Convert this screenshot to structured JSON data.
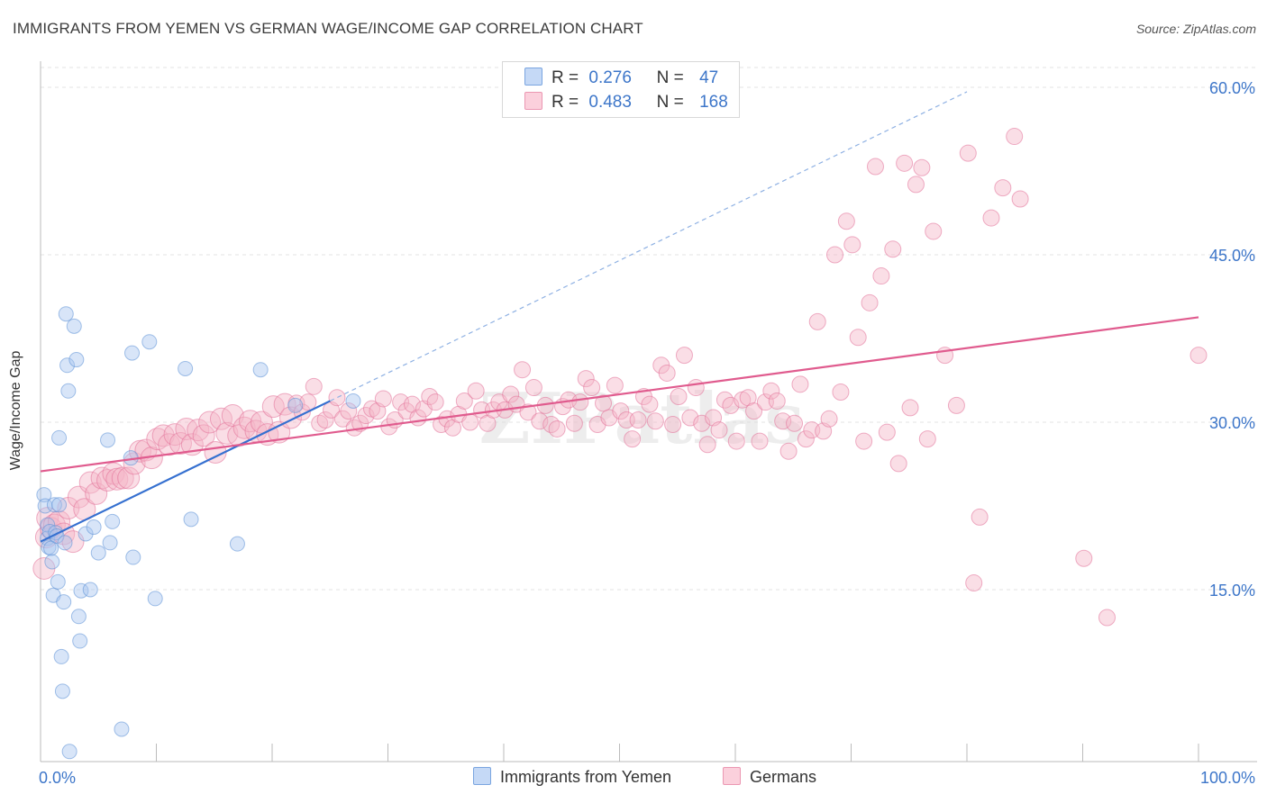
{
  "title": "IMMIGRANTS FROM YEMEN VS GERMAN WAGE/INCOME GAP CORRELATION CHART",
  "source": "Source: ZipAtlas.com",
  "watermark": "ZIPatlas",
  "legend_stats": [
    {
      "r_label": "R =",
      "r_value": "0.276",
      "n_label": "N =",
      "n_value": "47",
      "color": "#a9c6f0"
    },
    {
      "r_label": "R =",
      "r_value": "0.483",
      "n_label": "N =",
      "n_value": "168",
      "color": "#f5b6c8"
    }
  ],
  "chart_data": {
    "type": "scatter",
    "title": "IMMIGRANTS FROM YEMEN VS GERMAN WAGE/INCOME GAP CORRELATION CHART",
    "xlabel": "",
    "ylabel": "Wage/Income Gap",
    "xlim": [
      0,
      100
    ],
    "ylim": [
      0,
      63
    ],
    "x_tick_labels": [
      "0.0%",
      "100.0%"
    ],
    "y_ticks": [
      15,
      30,
      45,
      60
    ],
    "y_tick_labels": [
      "15.0%",
      "30.0%",
      "45.0%",
      "60.0%"
    ],
    "grid": true,
    "legend_position": "top-center",
    "series": [
      {
        "name": "Immigrants from Yemen",
        "color": "#a9c6f0",
        "stroke": "#5b8fd6",
        "trend": {
          "x": [
            0,
            25
          ],
          "y": [
            19.3,
            31.9
          ],
          "extended_to": [
            80,
            59.6
          ]
        },
        "points": [
          [
            0.3,
            23.5
          ],
          [
            0.4,
            22.5
          ],
          [
            0.6,
            20.8
          ],
          [
            0.6,
            19.6
          ],
          [
            0.7,
            18.8
          ],
          [
            0.8,
            20.2
          ],
          [
            0.9,
            18.7
          ],
          [
            1.0,
            17.5
          ],
          [
            1.1,
            14.5
          ],
          [
            1.2,
            22.6
          ],
          [
            1.3,
            20.1
          ],
          [
            1.4,
            19.8
          ],
          [
            1.5,
            15.7
          ],
          [
            1.6,
            22.6
          ],
          [
            1.8,
            9.0
          ],
          [
            1.9,
            5.9
          ],
          [
            2.0,
            13.9
          ],
          [
            2.1,
            19.2
          ],
          [
            2.2,
            39.7
          ],
          [
            2.3,
            35.1
          ],
          [
            2.4,
            32.8
          ],
          [
            2.5,
            0.5
          ],
          [
            1.6,
            28.6
          ],
          [
            2.9,
            38.6
          ],
          [
            3.1,
            35.6
          ],
          [
            3.3,
            12.6
          ],
          [
            3.4,
            10.4
          ],
          [
            3.5,
            14.9
          ],
          [
            3.9,
            20.0
          ],
          [
            4.3,
            15.0
          ],
          [
            4.6,
            20.6
          ],
          [
            5.0,
            18.3
          ],
          [
            5.8,
            28.4
          ],
          [
            6.0,
            19.2
          ],
          [
            6.2,
            21.1
          ],
          [
            7.0,
            2.5
          ],
          [
            7.8,
            26.8
          ],
          [
            7.9,
            36.2
          ],
          [
            8.0,
            17.9
          ],
          [
            9.4,
            37.2
          ],
          [
            9.9,
            14.2
          ],
          [
            12.5,
            34.8
          ],
          [
            13.0,
            21.3
          ],
          [
            17.0,
            19.1
          ],
          [
            19.0,
            34.7
          ],
          [
            22.0,
            31.5
          ],
          [
            27.0,
            31.9
          ]
        ]
      },
      {
        "name": "Germans",
        "color": "#f5b6c8",
        "stroke": "#e26f98",
        "trend": {
          "x": [
            0,
            100
          ],
          "y": [
            25.6,
            39.4
          ]
        },
        "points": [
          [
            0.3,
            16.9
          ],
          [
            0.5,
            19.7
          ],
          [
            0.6,
            21.4
          ],
          [
            0.9,
            20.5
          ],
          [
            1.2,
            20.8
          ],
          [
            1.6,
            21.1
          ],
          [
            2.0,
            20.0
          ],
          [
            2.4,
            22.3
          ],
          [
            2.8,
            19.3
          ],
          [
            3.3,
            23.3
          ],
          [
            3.8,
            22.2
          ],
          [
            4.3,
            24.6
          ],
          [
            4.8,
            23.6
          ],
          [
            5.3,
            25.0
          ],
          [
            5.8,
            24.8
          ],
          [
            6.3,
            25.4
          ],
          [
            6.6,
            24.9
          ],
          [
            7.1,
            25.0
          ],
          [
            7.6,
            25.0
          ],
          [
            8.1,
            26.3
          ],
          [
            8.6,
            27.4
          ],
          [
            9.1,
            27.5
          ],
          [
            9.6,
            26.8
          ],
          [
            10.1,
            28.5
          ],
          [
            10.6,
            28.8
          ],
          [
            11.1,
            28.0
          ],
          [
            11.6,
            28.9
          ],
          [
            12.1,
            28.1
          ],
          [
            12.6,
            29.4
          ],
          [
            13.1,
            28.0
          ],
          [
            13.6,
            29.3
          ],
          [
            14.1,
            28.8
          ],
          [
            14.6,
            30.0
          ],
          [
            15.1,
            27.3
          ],
          [
            15.6,
            30.3
          ],
          [
            16.1,
            29.0
          ],
          [
            16.6,
            30.6
          ],
          [
            17.1,
            28.8
          ],
          [
            17.6,
            29.5
          ],
          [
            18.1,
            30.1
          ],
          [
            18.6,
            29.2
          ],
          [
            19.1,
            30.0
          ],
          [
            19.6,
            28.9
          ],
          [
            20.1,
            31.4
          ],
          [
            20.6,
            29.1
          ],
          [
            21.1,
            31.6
          ],
          [
            21.6,
            30.4
          ],
          [
            22.1,
            31.7
          ],
          [
            22.6,
            30.9
          ],
          [
            23.1,
            31.8
          ],
          [
            23.6,
            33.2
          ],
          [
            24.1,
            29.9
          ],
          [
            24.6,
            30.2
          ],
          [
            25.1,
            31.1
          ],
          [
            25.6,
            32.2
          ],
          [
            26.1,
            30.3
          ],
          [
            26.6,
            31.0
          ],
          [
            27.1,
            29.5
          ],
          [
            27.6,
            29.9
          ],
          [
            28.1,
            30.6
          ],
          [
            28.6,
            31.2
          ],
          [
            29.1,
            31.0
          ],
          [
            29.6,
            32.1
          ],
          [
            30.1,
            29.6
          ],
          [
            30.6,
            30.2
          ],
          [
            31.1,
            31.8
          ],
          [
            31.6,
            31.0
          ],
          [
            32.1,
            31.6
          ],
          [
            32.6,
            30.4
          ],
          [
            33.1,
            31.2
          ],
          [
            33.6,
            32.3
          ],
          [
            34.1,
            31.8
          ],
          [
            34.6,
            29.8
          ],
          [
            35.1,
            30.3
          ],
          [
            35.6,
            29.5
          ],
          [
            36.1,
            30.7
          ],
          [
            36.6,
            31.9
          ],
          [
            37.1,
            30.0
          ],
          [
            37.6,
            32.8
          ],
          [
            38.1,
            31.1
          ],
          [
            38.6,
            29.9
          ],
          [
            39.1,
            31.1
          ],
          [
            39.6,
            31.8
          ],
          [
            40.1,
            31.1
          ],
          [
            40.6,
            32.5
          ],
          [
            41.1,
            31.6
          ],
          [
            41.6,
            34.7
          ],
          [
            42.1,
            30.9
          ],
          [
            42.6,
            33.1
          ],
          [
            43.1,
            30.1
          ],
          [
            43.6,
            31.5
          ],
          [
            44.1,
            29.8
          ],
          [
            44.6,
            29.4
          ],
          [
            45.1,
            31.4
          ],
          [
            45.6,
            32.0
          ],
          [
            46.1,
            29.9
          ],
          [
            46.6,
            31.8
          ],
          [
            47.1,
            33.9
          ],
          [
            47.6,
            33.1
          ],
          [
            48.1,
            29.8
          ],
          [
            48.6,
            31.7
          ],
          [
            49.1,
            30.4
          ],
          [
            49.6,
            33.3
          ],
          [
            50.1,
            31.0
          ],
          [
            50.6,
            30.2
          ],
          [
            51.1,
            28.5
          ],
          [
            51.6,
            30.2
          ],
          [
            52.1,
            32.3
          ],
          [
            52.6,
            31.6
          ],
          [
            53.1,
            30.1
          ],
          [
            53.6,
            35.1
          ],
          [
            54.1,
            34.4
          ],
          [
            54.6,
            29.8
          ],
          [
            55.1,
            32.3
          ],
          [
            55.6,
            36.0
          ],
          [
            56.1,
            30.4
          ],
          [
            56.6,
            33.1
          ],
          [
            57.1,
            29.9
          ],
          [
            57.6,
            28.0
          ],
          [
            58.1,
            30.4
          ],
          [
            58.6,
            29.3
          ],
          [
            59.1,
            32.0
          ],
          [
            59.6,
            31.5
          ],
          [
            60.1,
            28.3
          ],
          [
            60.6,
            32.0
          ],
          [
            61.1,
            32.2
          ],
          [
            61.6,
            31.0
          ],
          [
            62.1,
            28.3
          ],
          [
            62.6,
            31.8
          ],
          [
            63.1,
            32.8
          ],
          [
            63.6,
            31.9
          ],
          [
            64.1,
            30.1
          ],
          [
            64.6,
            27.4
          ],
          [
            65.1,
            29.9
          ],
          [
            65.6,
            33.4
          ],
          [
            66.1,
            28.5
          ],
          [
            66.6,
            29.3
          ],
          [
            67.1,
            39.0
          ],
          [
            67.6,
            29.2
          ],
          [
            68.1,
            30.3
          ],
          [
            68.6,
            45.0
          ],
          [
            69.1,
            32.7
          ],
          [
            69.6,
            48.0
          ],
          [
            70.1,
            45.9
          ],
          [
            70.6,
            37.6
          ],
          [
            71.1,
            28.3
          ],
          [
            71.6,
            40.7
          ],
          [
            72.1,
            52.9
          ],
          [
            72.6,
            43.1
          ],
          [
            73.1,
            29.1
          ],
          [
            73.6,
            45.5
          ],
          [
            74.1,
            26.3
          ],
          [
            74.6,
            53.2
          ],
          [
            75.1,
            31.3
          ],
          [
            75.6,
            51.3
          ],
          [
            76.1,
            52.8
          ],
          [
            76.6,
            28.5
          ],
          [
            77.1,
            47.1
          ],
          [
            78.1,
            36.0
          ],
          [
            79.1,
            31.5
          ],
          [
            80.1,
            54.1
          ],
          [
            80.6,
            15.6
          ],
          [
            81.1,
            21.5
          ],
          [
            82.1,
            48.3
          ],
          [
            83.1,
            51.0
          ],
          [
            84.1,
            55.6
          ],
          [
            84.6,
            50.0
          ],
          [
            90.1,
            17.8
          ],
          [
            92.1,
            12.5
          ],
          [
            100.0,
            36.0
          ]
        ]
      }
    ]
  },
  "bottom_legend": [
    {
      "label": "Immigrants from Yemen",
      "color": "#a9c6f0"
    },
    {
      "label": "Germans",
      "color": "#f5b6c8"
    }
  ]
}
